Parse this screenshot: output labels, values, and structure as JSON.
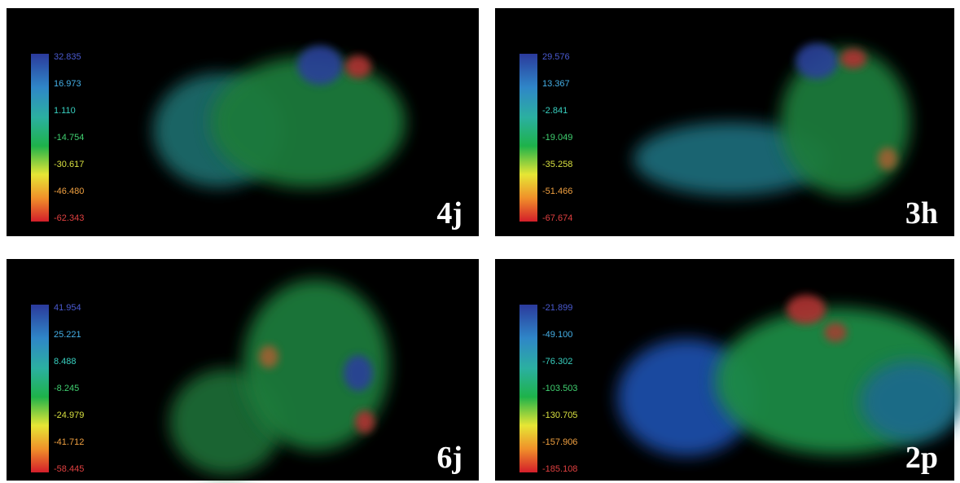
{
  "panels": [
    {
      "label": "4j",
      "scale": [
        "32.835",
        "16.973",
        "1.110",
        "-14.754",
        "-30.617",
        "-46.480",
        "-62.343"
      ]
    },
    {
      "label": "3h",
      "scale": [
        "29.576",
        "13.367",
        "-2.841",
        "-19.049",
        "-35.258",
        "-51.466",
        "-67.674"
      ]
    },
    {
      "label": "6j",
      "scale": [
        "41.954",
        "25.221",
        "8.488",
        "-8.245",
        "-24.979",
        "-41.712",
        "-58.445"
      ]
    },
    {
      "label": "2p",
      "scale": [
        "-21.899",
        "-49.100",
        "-76.302",
        "-103.503",
        "-130.705",
        "-157.906",
        "-185.108"
      ]
    }
  ]
}
